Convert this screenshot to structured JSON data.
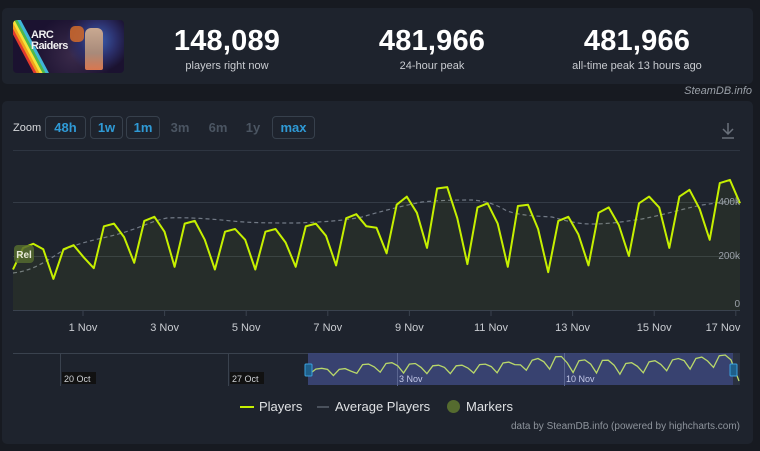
{
  "game": {
    "name": "ARC Raiders",
    "capsule_line1": "ARC",
    "capsule_line2": "Raiders"
  },
  "stats": [
    {
      "value": "148,089",
      "label": "players right now"
    },
    {
      "value": "481,966",
      "label": "24-hour peak"
    },
    {
      "value": "481,966",
      "label": "all-time peak 13 hours ago"
    }
  ],
  "credit_top": "SteamDB.info",
  "toolbar": {
    "zoom_label": "Zoom",
    "buttons": [
      {
        "label": "48h",
        "enabled": true
      },
      {
        "label": "1w",
        "enabled": true
      },
      {
        "label": "1m",
        "enabled": true
      },
      {
        "label": "3m",
        "enabled": false
      },
      {
        "label": "6m",
        "enabled": false
      },
      {
        "label": "1y",
        "enabled": false
      },
      {
        "label": "max",
        "enabled": true
      }
    ],
    "download_icon": "download-icon"
  },
  "navigator": {
    "labels": [
      "20 Oct",
      "27 Oct",
      "3 Nov",
      "10 Nov"
    ]
  },
  "legend": {
    "players": "Players",
    "average": "Average Players",
    "markers": "Markers"
  },
  "marker_label": "Rel",
  "credit_bottom": "data by SteamDB.info (powered by highcharts.com)",
  "colors": {
    "players": "#c6f000",
    "average": "#6b7380",
    "marker": "#556b2f",
    "accent": "#2f9ad6",
    "bg": "#1e232d"
  },
  "chart_data": {
    "type": "line",
    "title": "",
    "xlabel": "",
    "ylabel": "",
    "ylim": [
      0,
      500000
    ],
    "yticks": [
      "0",
      "200k",
      "400k"
    ],
    "xticks": [
      "1 Nov",
      "3 Nov",
      "5 Nov",
      "7 Nov",
      "9 Nov",
      "11 Nov",
      "13 Nov",
      "15 Nov",
      "17 Nov"
    ],
    "grid": true,
    "legend_position": "bottom",
    "series": [
      {
        "name": "Players",
        "x": [
          "30 Oct 12:00",
          "30 Oct 18:00",
          "31 Oct 00:00",
          "31 Oct 06:00",
          "31 Oct 12:00",
          "31 Oct 18:00",
          "1 Nov 00:00",
          "1 Nov 06:00",
          "1 Nov 12:00",
          "1 Nov 18:00",
          "2 Nov 00:00",
          "2 Nov 06:00",
          "2 Nov 12:00",
          "2 Nov 18:00",
          "3 Nov 00:00",
          "3 Nov 06:00",
          "3 Nov 12:00",
          "3 Nov 18:00",
          "4 Nov 00:00",
          "4 Nov 06:00",
          "4 Nov 12:00",
          "4 Nov 18:00",
          "5 Nov 00:00",
          "5 Nov 06:00",
          "5 Nov 12:00",
          "5 Nov 18:00",
          "6 Nov 00:00",
          "6 Nov 06:00",
          "6 Nov 12:00",
          "6 Nov 18:00",
          "7 Nov 00:00",
          "7 Nov 06:00",
          "7 Nov 12:00",
          "7 Nov 18:00",
          "8 Nov 00:00",
          "8 Nov 06:00",
          "8 Nov 12:00",
          "8 Nov 18:00",
          "9 Nov 00:00",
          "9 Nov 06:00",
          "9 Nov 12:00",
          "9 Nov 18:00",
          "10 Nov 00:00",
          "10 Nov 06:00",
          "10 Nov 12:00",
          "10 Nov 18:00",
          "11 Nov 00:00",
          "11 Nov 06:00",
          "11 Nov 12:00",
          "11 Nov 18:00",
          "12 Nov 00:00",
          "12 Nov 06:00",
          "12 Nov 12:00",
          "12 Nov 18:00",
          "13 Nov 00:00",
          "13 Nov 06:00",
          "13 Nov 12:00",
          "13 Nov 18:00",
          "14 Nov 00:00",
          "14 Nov 06:00",
          "14 Nov 12:00",
          "14 Nov 18:00",
          "15 Nov 00:00",
          "15 Nov 06:00",
          "15 Nov 12:00",
          "15 Nov 18:00",
          "16 Nov 00:00",
          "16 Nov 06:00",
          "16 Nov 12:00",
          "16 Nov 18:00",
          "17 Nov 00:00",
          "17 Nov 06:00",
          "17 Nov 12:00"
        ],
        "values": [
          150000,
          230000,
          245000,
          225000,
          115000,
          225000,
          240000,
          195000,
          155000,
          310000,
          320000,
          270000,
          175000,
          330000,
          345000,
          290000,
          160000,
          320000,
          330000,
          260000,
          150000,
          290000,
          300000,
          260000,
          150000,
          290000,
          300000,
          250000,
          160000,
          310000,
          320000,
          275000,
          165000,
          340000,
          355000,
          310000,
          305000,
          210000,
          390000,
          420000,
          360000,
          230000,
          450000,
          455000,
          340000,
          170000,
          380000,
          395000,
          320000,
          160000,
          385000,
          390000,
          300000,
          140000,
          330000,
          345000,
          280000,
          165000,
          360000,
          380000,
          315000,
          200000,
          395000,
          420000,
          380000,
          230000,
          420000,
          445000,
          375000,
          260000,
          470000,
          481966,
          395000
        ]
      },
      {
        "name": "Average Players",
        "x": [
          "30 Oct",
          "31 Oct",
          "1 Nov",
          "2 Nov",
          "3 Nov",
          "4 Nov",
          "5 Nov",
          "6 Nov",
          "7 Nov",
          "8 Nov",
          "9 Nov",
          "10 Nov",
          "11 Nov",
          "12 Nov",
          "13 Nov",
          "14 Nov",
          "15 Nov",
          "16 Nov",
          "17 Nov"
        ],
        "values": [
          140000,
          170000,
          230000,
          275000,
          285000,
          275000,
          270000,
          270000,
          275000,
          300000,
          325000,
          325000,
          300000,
          295000,
          270000,
          275000,
          295000,
          340000,
          355000
        ]
      }
    ],
    "annotations": [
      {
        "label": "Rel",
        "x": "30 Oct",
        "type": "marker"
      }
    ]
  }
}
